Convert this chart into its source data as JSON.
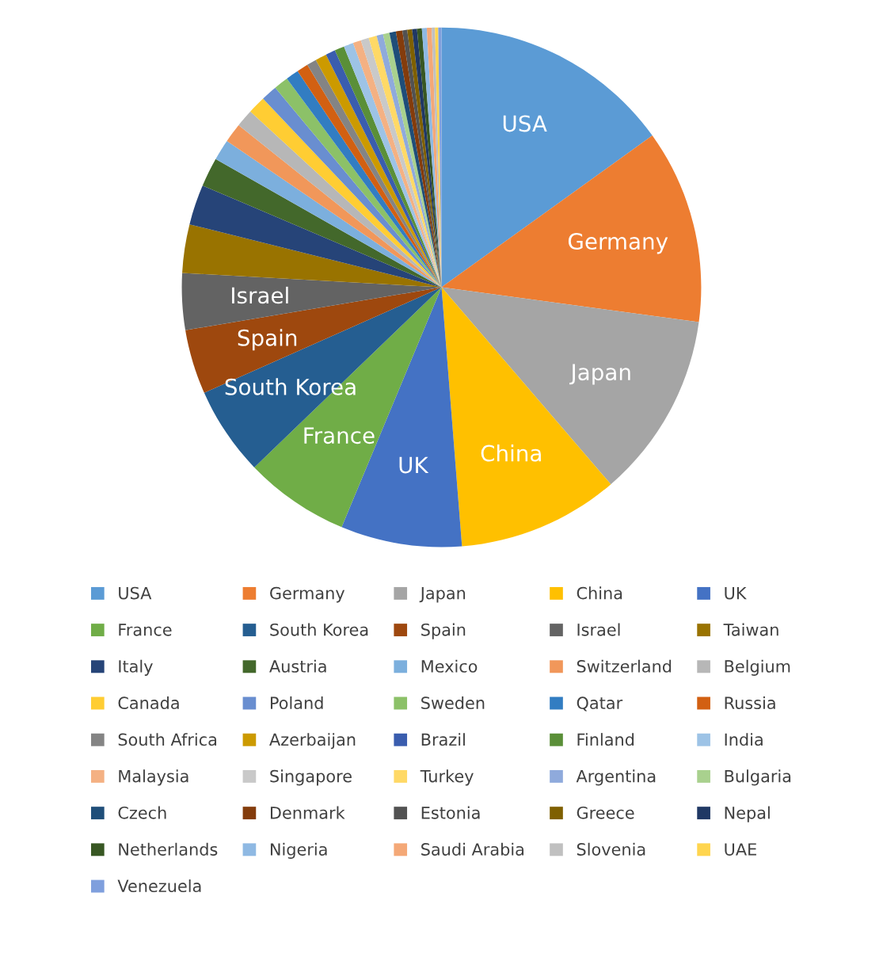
{
  "chart_data": {
    "type": "pie",
    "categories": [
      "USA",
      "Germany",
      "Japan",
      "China",
      "UK",
      "France",
      "South Korea",
      "Spain",
      "Israel",
      "Taiwan",
      "Italy",
      "Austria",
      "Mexico",
      "Switzerland",
      "Belgium",
      "Canada",
      "Poland",
      "Sweden",
      "Qatar",
      "Russia",
      "South Africa",
      "Azerbaijan",
      "Brazil",
      "Finland",
      "India",
      "Malaysia",
      "Singapore",
      "Turkey",
      "Argentina",
      "Bulgaria",
      "Czech",
      "Denmark",
      "Estonia",
      "Greece",
      "Nepal",
      "Netherlands",
      "Nigeria",
      "Saudi Arabia",
      "Slovenia",
      "UAE",
      "Venezuela"
    ],
    "values": [
      15,
      12,
      11.5,
      10,
      7.5,
      6.5,
      5.5,
      4,
      3.5,
      3,
      2.5,
      1.8,
      1.3,
      1.2,
      1.1,
      1.1,
      1.0,
      0.9,
      0.8,
      0.7,
      0.6,
      0.7,
      0.6,
      0.6,
      0.6,
      0.5,
      0.5,
      0.5,
      0.4,
      0.4,
      0.4,
      0.4,
      0.3,
      0.3,
      0.3,
      0.3,
      0.3,
      0.3,
      0.2,
      0.2,
      0.2
    ],
    "colors": [
      "#5b9bd5",
      "#ed7d31",
      "#a5a5a5",
      "#ffc000",
      "#4472c4",
      "#70ad47",
      "#255e91",
      "#9e480e",
      "#636363",
      "#997300",
      "#264478",
      "#43682b",
      "#7cafdd",
      "#f1975a",
      "#b7b7b7",
      "#ffcd33",
      "#698ed0",
      "#8cc168",
      "#327dc2",
      "#d26012",
      "#848484",
      "#cc9a00",
      "#3a5dae",
      "#5a8f38",
      "#9dc3e6",
      "#f4b183",
      "#c9c9c9",
      "#ffd966",
      "#8faadc",
      "#a9d18e",
      "#1f4e79",
      "#843c0c",
      "#525252",
      "#7f6000",
      "#203864",
      "#385723",
      "#8fb9e3",
      "#f4a877",
      "#c0c0c0",
      "#ffd54f",
      "#7f9fdd"
    ],
    "legend": "bottom"
  }
}
